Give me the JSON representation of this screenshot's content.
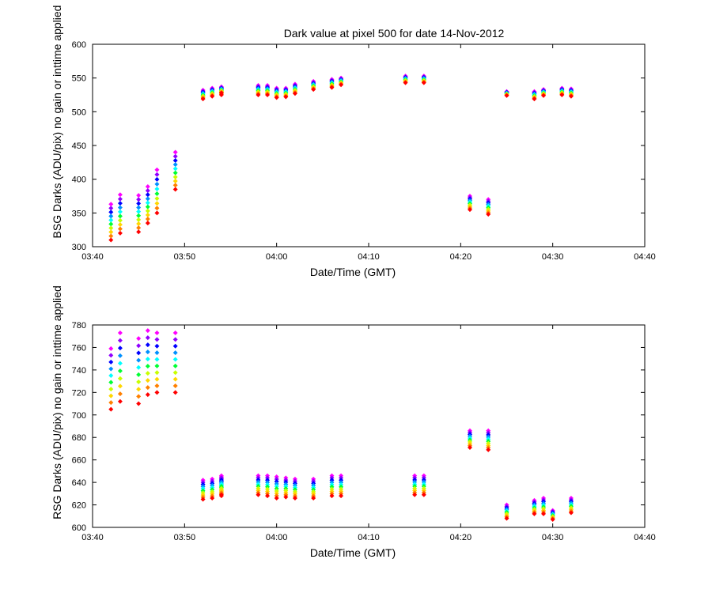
{
  "figure": {
    "title": "Dark value at pixel 500 for date 14-Nov-2012",
    "marker_colors": [
      "#ff0000",
      "#ff8000",
      "#ffd700",
      "#c8ff00",
      "#00ff33",
      "#00ffff",
      "#0090ff",
      "#0000ff",
      "#9000ff",
      "#ff00ff"
    ]
  },
  "chart_data": [
    {
      "type": "scatter",
      "title": "Dark value at pixel 500 for date 14-Nov-2012",
      "xlabel": "Date/Time (GMT)",
      "ylabel": "BSG Darks (ADU/pix) no gain or inttime applied",
      "xlim": [
        "03:40",
        "04:40"
      ],
      "ylim": [
        300,
        600
      ],
      "xticks": [
        "03:40",
        "03:50",
        "04:00",
        "04:10",
        "04:20",
        "04:30",
        "04:40"
      ],
      "yticks": [
        300,
        350,
        400,
        450,
        500,
        550,
        600
      ],
      "grid": false,
      "x": [
        "03:42",
        "03:43",
        "03:45",
        "03:46",
        "03:47",
        "03:49",
        "03:52",
        "03:53",
        "03:54",
        "03:54",
        "03:58",
        "03:59",
        "04:00",
        "04:01",
        "04:02",
        "04:04",
        "04:06",
        "04:07",
        "04:14",
        "04:16",
        "04:21",
        "04:23",
        "04:25",
        "04:28",
        "04:29",
        "04:31",
        "04:32"
      ],
      "y_low": [
        310,
        320,
        322,
        335,
        350,
        385,
        519,
        523,
        525,
        528,
        525,
        525,
        521,
        522,
        527,
        533,
        536,
        540,
        543,
        543,
        355,
        348,
        524,
        519,
        524,
        525,
        523
      ],
      "y_high": [
        363,
        377,
        376,
        389,
        414,
        440,
        532,
        535,
        536,
        537,
        539,
        539,
        535,
        535,
        541,
        545,
        548,
        550,
        553,
        553,
        375,
        370,
        530,
        530,
        533,
        535,
        534
      ]
    },
    {
      "type": "scatter",
      "title": "",
      "xlabel": "Date/Time (GMT)",
      "ylabel": "RSG Darks (ADU/pix) no gain or inttime applied",
      "xlim": [
        "03:40",
        "04:40"
      ],
      "ylim": [
        600,
        780
      ],
      "xticks": [
        "03:40",
        "03:50",
        "04:00",
        "04:10",
        "04:20",
        "04:30",
        "04:40"
      ],
      "yticks": [
        600,
        620,
        640,
        660,
        680,
        700,
        720,
        740,
        760,
        780
      ],
      "grid": false,
      "x": [
        "03:42",
        "03:43",
        "03:45",
        "03:46",
        "03:47",
        "03:49",
        "03:52",
        "03:53",
        "03:54",
        "03:54",
        "03:58",
        "03:59",
        "04:00",
        "04:01",
        "04:02",
        "04:04",
        "04:06",
        "04:07",
        "04:15",
        "04:16",
        "04:21",
        "04:23",
        "04:25",
        "04:28",
        "04:29",
        "04:30",
        "04:32"
      ],
      "y_low": [
        705,
        712,
        710,
        718,
        720,
        720,
        625,
        626,
        628,
        629,
        629,
        628,
        626,
        627,
        626,
        626,
        628,
        628,
        629,
        629,
        671,
        669,
        608,
        612,
        612,
        607,
        613
      ],
      "y_high": [
        759,
        773,
        768,
        775,
        773,
        773,
        642,
        643,
        645,
        646,
        646,
        646,
        645,
        644,
        643,
        643,
        646,
        646,
        646,
        646,
        686,
        686,
        620,
        624,
        626,
        615,
        626
      ]
    }
  ]
}
